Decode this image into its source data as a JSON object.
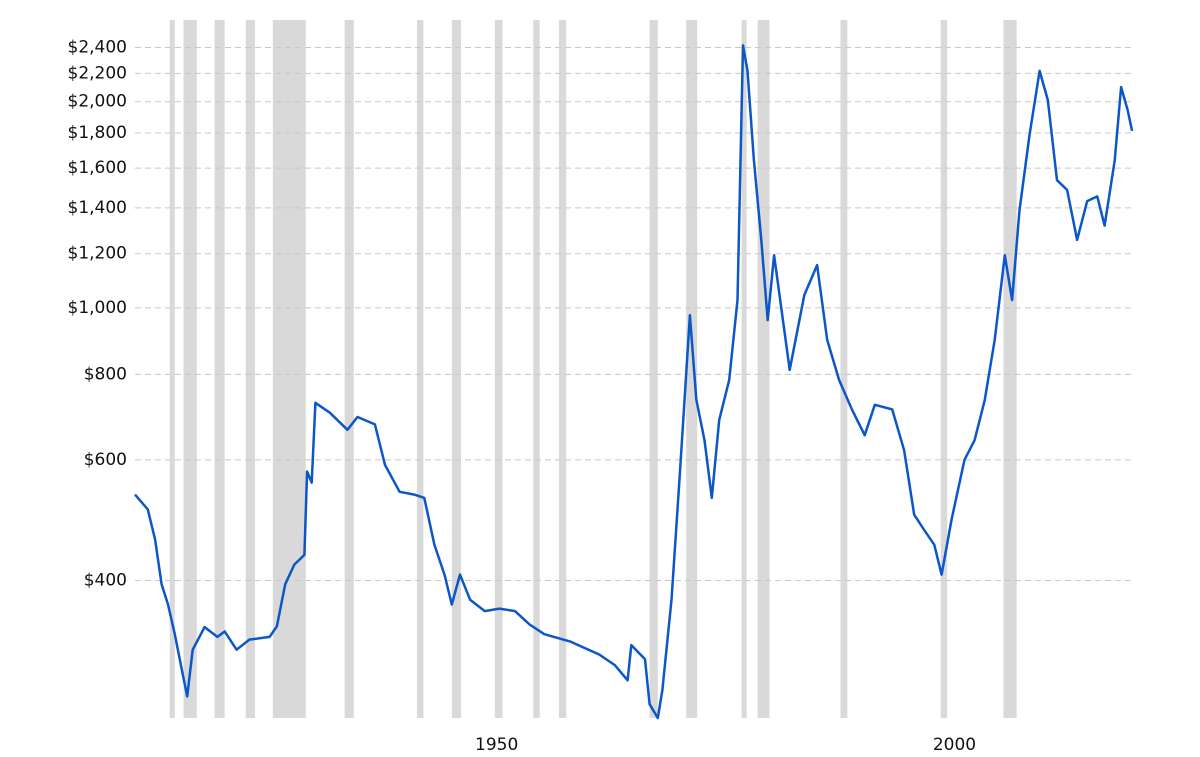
{
  "chart_data": {
    "type": "line",
    "scale": "log",
    "grid": true,
    "xlim": [
      1910.5,
      2019.5
    ],
    "xticks": [
      1950,
      2000
    ],
    "ylim": [
      252,
      2420
    ],
    "yticks": [
      {
        "value": 400,
        "label": "$400"
      },
      {
        "value": 600,
        "label": "$600"
      },
      {
        "value": 800,
        "label": "$800"
      },
      {
        "value": 1000,
        "label": "$1,000"
      },
      {
        "value": 1200,
        "label": "$1,200"
      },
      {
        "value": 1400,
        "label": "$1,400"
      },
      {
        "value": 1600,
        "label": "$1,600"
      },
      {
        "value": 1800,
        "label": "$1,800"
      },
      {
        "value": 2000,
        "label": "$2,000"
      },
      {
        "value": 2200,
        "label": "$2,200"
      },
      {
        "value": 2400,
        "label": "$2,400"
      }
    ],
    "recession_color": "#d9d9d9",
    "recessions": [
      [
        1914.3,
        1914.85
      ],
      [
        1915.8,
        1917.25
      ],
      [
        1919.2,
        1920.3
      ],
      [
        1922.6,
        1923.6
      ],
      [
        1925.55,
        1929.15
      ],
      [
        1933.4,
        1934.4
      ],
      [
        1941.3,
        1942.0
      ],
      [
        1945.1,
        1946.1
      ],
      [
        1949.8,
        1950.65
      ],
      [
        1954.0,
        1954.7
      ],
      [
        1956.8,
        1957.6
      ],
      [
        1966.7,
        1967.6
      ],
      [
        1970.7,
        1971.9
      ],
      [
        1976.75,
        1977.3
      ],
      [
        1978.5,
        1979.8
      ],
      [
        1987.55,
        1988.3
      ],
      [
        1998.5,
        1999.2
      ],
      [
        2005.35,
        2006.8
      ]
    ],
    "x": [
      1910.5,
      1911.9,
      1912.7,
      1913.4,
      1914.1,
      1914.85,
      1915.6,
      1916.2,
      1916.8,
      1918.1,
      1919.5,
      1920.3,
      1921.6,
      1923.0,
      1925.2,
      1926.0,
      1926.9,
      1927.9,
      1929.0,
      1929.3,
      1929.8,
      1930.2,
      1931.8,
      1933.7,
      1934.8,
      1936.7,
      1937.8,
      1939.4,
      1941.0,
      1942.1,
      1943.2,
      1944.3,
      1945.1,
      1946.0,
      1947.1,
      1948.7,
      1950.3,
      1952.0,
      1953.6,
      1955.2,
      1958.0,
      1961.2,
      1962.9,
      1964.3,
      1964.7,
      1966.2,
      1966.7,
      1967.6,
      1968.1,
      1969.1,
      1970.0,
      1971.1,
      1971.8,
      1972.7,
      1973.5,
      1974.3,
      1975.4,
      1976.3,
      1976.9,
      1977.4,
      1978.1,
      1978.9,
      1979.6,
      1980.3,
      1982.0,
      1983.6,
      1985.0,
      1986.1,
      1987.4,
      1988.8,
      1990.2,
      1991.3,
      1993.2,
      1994.5,
      1995.6,
      1996.7,
      1997.8,
      1998.6,
      1999.7,
      2001.1,
      2002.2,
      2003.3,
      2004.4,
      2005.5,
      2006.3,
      2007.1,
      2008.2,
      2009.3,
      2010.2,
      2011.2,
      2012.3,
      2013.4,
      2014.5,
      2015.6,
      2016.4,
      2017.5,
      2018.2,
      2018.9,
      2019.4
    ],
    "series": [
      {
        "color": "#0b57c8",
        "values": [
          534,
          508,
          459,
          395,
          369,
          334,
          297,
          271,
          317,
          342,
          331,
          337,
          317,
          328,
          331,
          343,
          395,
          422,
          436,
          577,
          556,
          727,
          703,
          664,
          693,
          676,
          590,
          539,
          534,
          528,
          451,
          408,
          369,
          408,
          375,
          361,
          364,
          361,
          345,
          334,
          326,
          312,
          301,
          286,
          322,
          307,
          264,
          252,
          277,
          375,
          571,
          976,
          735,
          641,
          528,
          686,
          785,
          1027,
          2417,
          2218,
          1643,
          1256,
          960,
          1194,
          812,
          1044,
          1155,
          898,
          785,
          711,
          652,
          722,
          711,
          620,
          499,
          474,
          451,
          408,
          492,
          600,
          641,
          733,
          898,
          1194,
          1027,
          1389,
          1787,
          2218,
          2012,
          1536,
          1487,
          1257,
          1432,
          1455,
          1319,
          1641,
          2101,
          1948,
          1813
        ]
      }
    ]
  }
}
